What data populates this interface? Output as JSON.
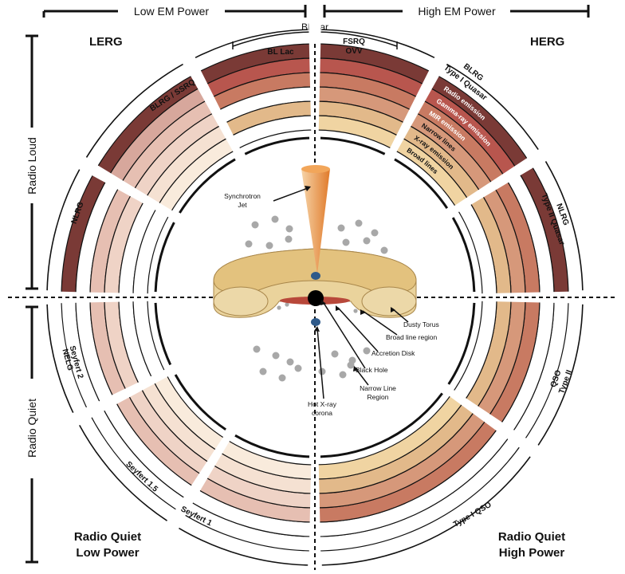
{
  "header": {
    "low_em_power": "Low EM Power",
    "high_em_power": "High EM Power",
    "blazar": "Blazar"
  },
  "side": {
    "radio_loud": "Radio Loud",
    "radio_quiet": "Radio Quiet"
  },
  "corners": {
    "lerg": "LERG",
    "herg": "HERG",
    "rq_low_line1": "Radio Quiet",
    "rq_low_line2": "Low Power",
    "rq_high_line1": "Radio Quiet",
    "rq_high_line2": "High Power"
  },
  "classes": {
    "bl_lac": "BL Lac",
    "fsrq": "FSRQ",
    "ovv": "OVV",
    "blrg_ssrq": "BLRG / SSRQ",
    "nlrg": "NLRG",
    "blrg_type1_l1": "BLRG",
    "blrg_type1_l2": "Type I Quasar",
    "nlrg_type2_l1": "NLRG",
    "nlrg_type2_l2": "Type II Quasar",
    "seyfert2_l1": "Seyfert 2",
    "seyfert2_l2": "NELG",
    "seyfert15": "Seyfert 1.5",
    "seyfert1": "Seyfert 1",
    "type2qso_l1": "Type II",
    "type2qso_l2": "QSO",
    "type1qso": "Type I QSO"
  },
  "ring_labels": [
    "Radio emission",
    "Gamma-ray emission",
    "MIR emission",
    "Narrow lines",
    "X-ray emission",
    "Broad lines"
  ],
  "components": {
    "synchrotron": "Synchrotron",
    "jet": "Jet",
    "dusty_torus": "Dusty Torus",
    "broad_line_region": "Broad line region",
    "accretion_disk": "Accretion Disk",
    "black_hole": "Black Hole",
    "narrow_line_l1": "Narrow Line",
    "narrow_line_l2": "Region",
    "hot_xray_l1": "Hot X-ray",
    "hot_xray_l2": "corona"
  },
  "colors": {
    "radio": "#7a3a36",
    "gamma": "#b8564e",
    "mir": "#c87a62",
    "narrow": "#d6987a",
    "xray": "#e2b98a",
    "broad": "#f0d4a2",
    "ring_off": "#ffffff",
    "torus": "#e8d29a",
    "jet": "#e89040",
    "blob": "#2f5a8a",
    "cloud": "#a8a8a8"
  }
}
